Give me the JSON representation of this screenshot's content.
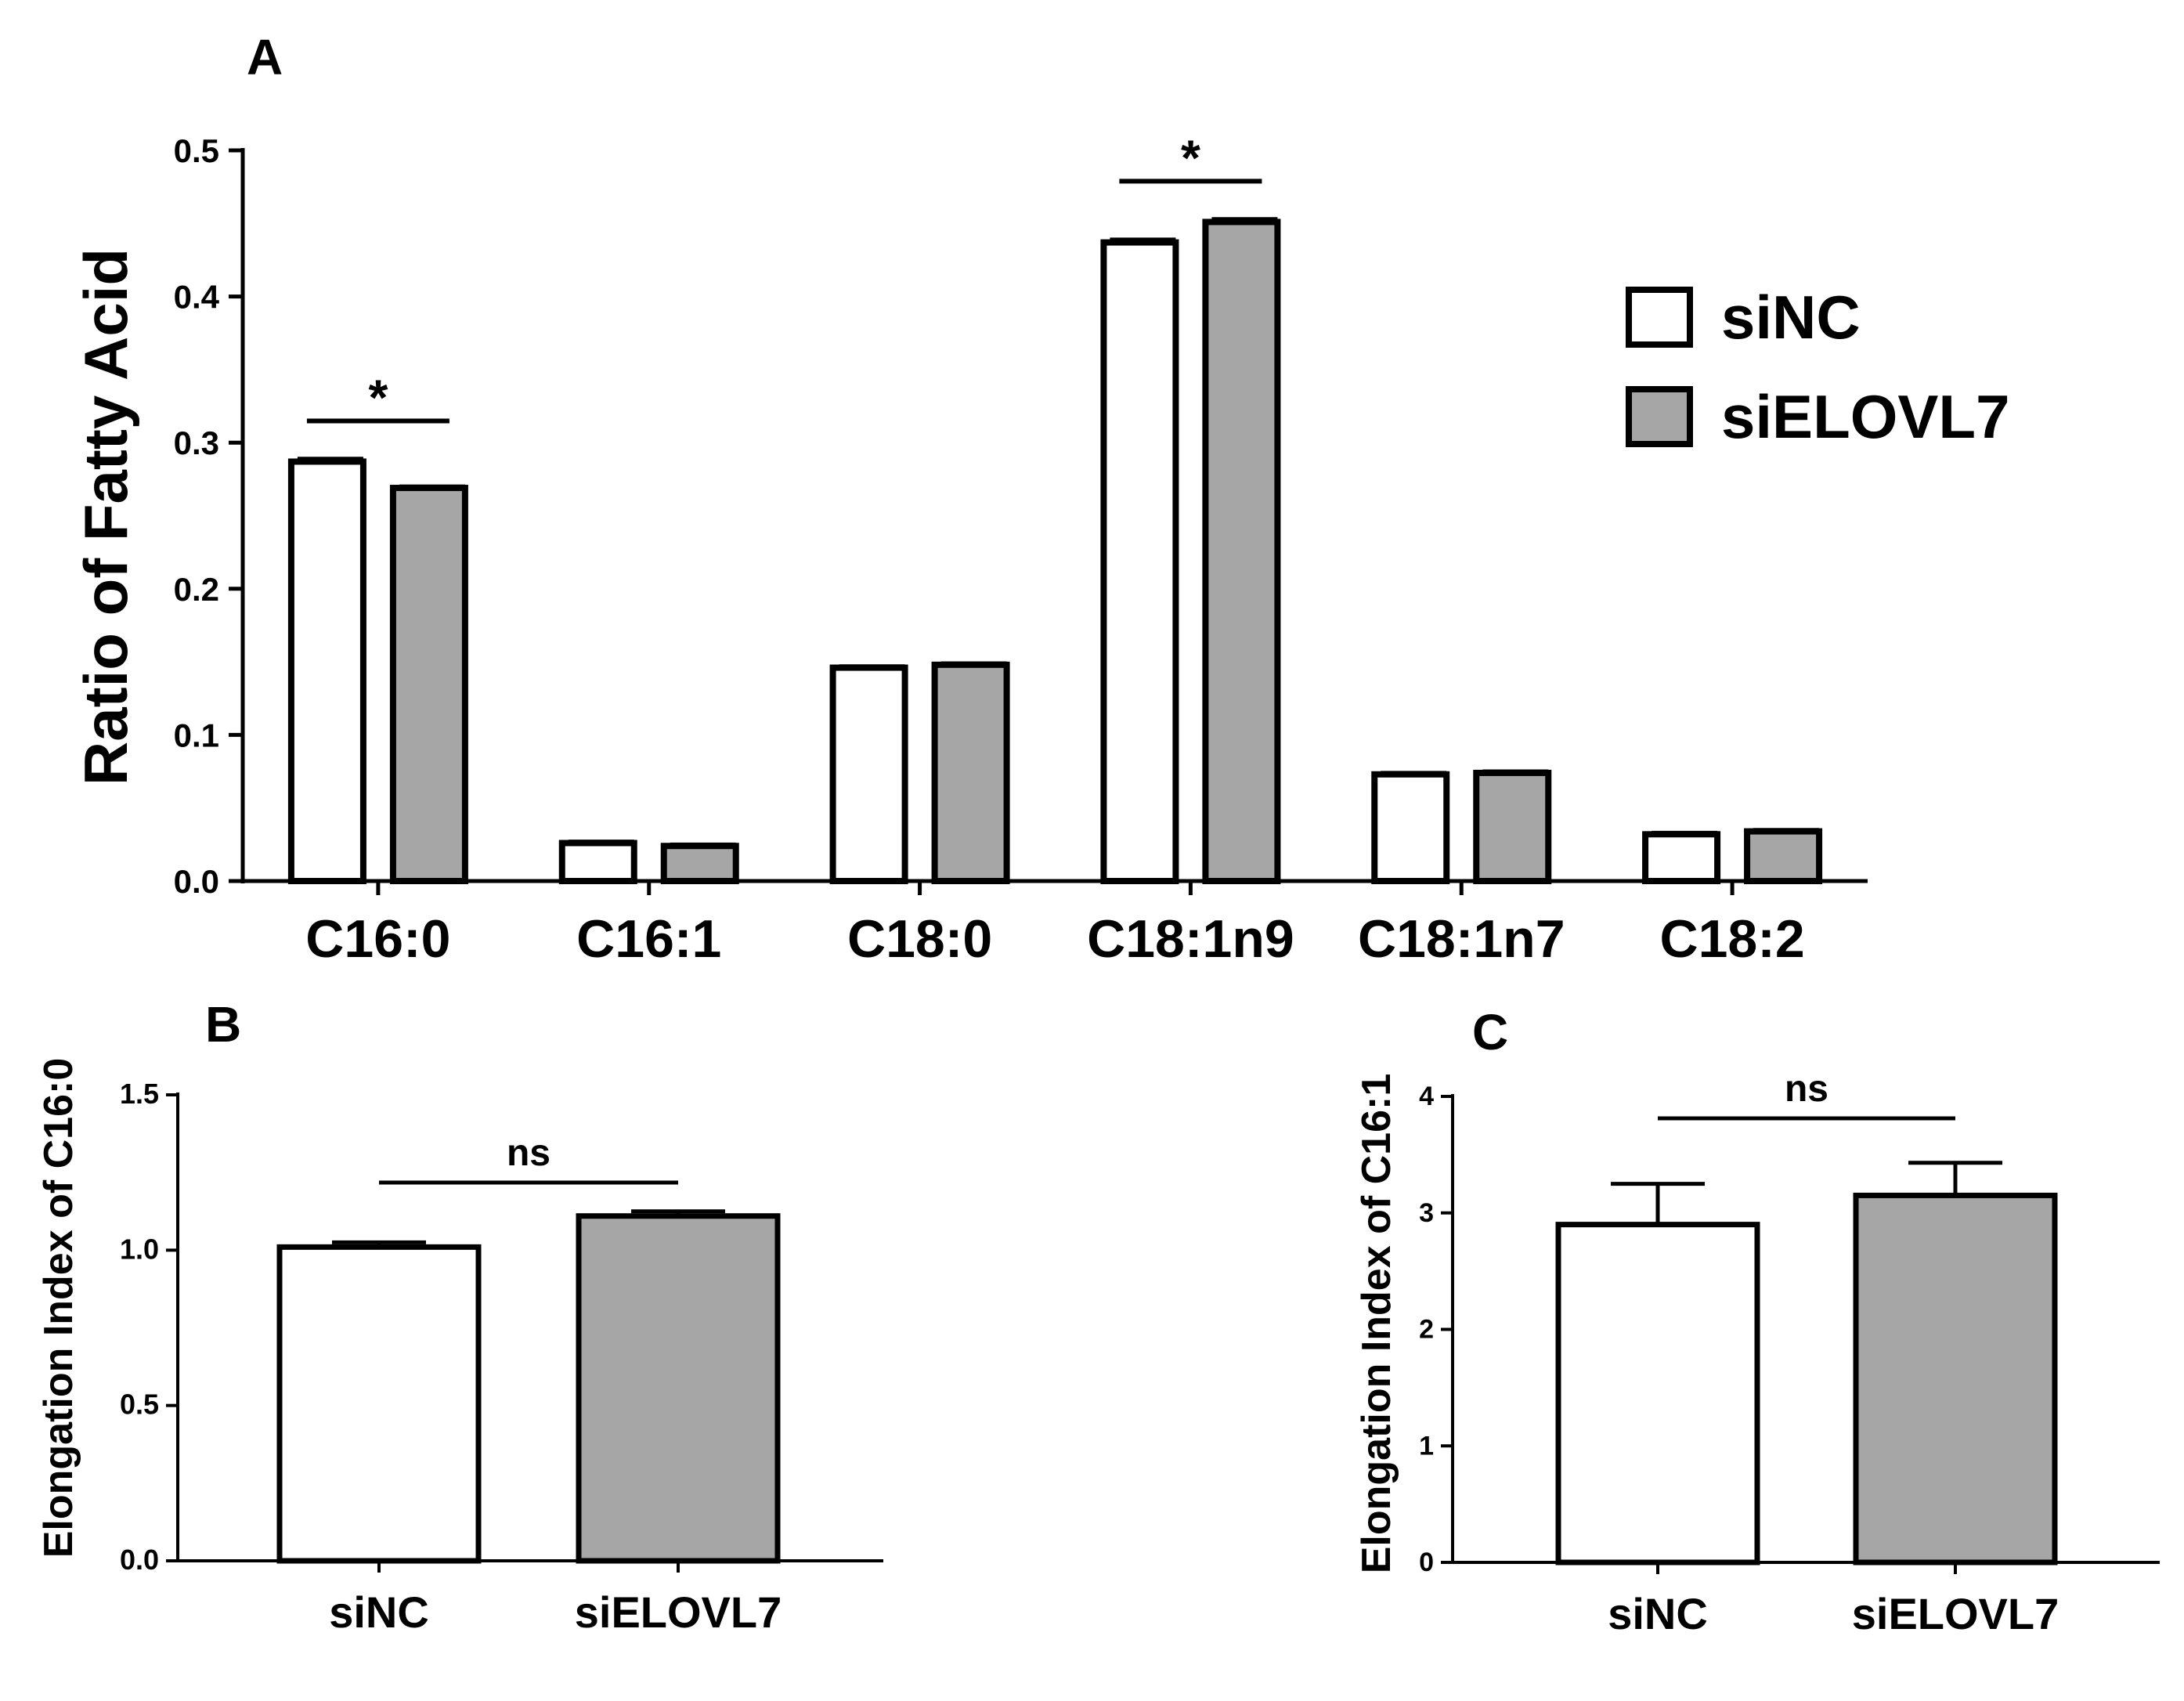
{
  "colors": {
    "siNC": "#ffffff",
    "siELOVL7": "#a6a6a6",
    "stroke": "#000000"
  },
  "chart_data": [
    {
      "type": "bar",
      "panel": "A",
      "title": "",
      "xlabel": "",
      "ylabel": "Ratio of Fatty Acid",
      "ylim": [
        0,
        0.5
      ],
      "yticks": [
        0.0,
        0.1,
        0.2,
        0.3,
        0.4,
        0.5
      ],
      "ytick_labels": [
        "0.0",
        "0.1",
        "0.2",
        "0.3",
        "0.4",
        "0.5"
      ],
      "categories": [
        "C16:0",
        "C16:1",
        "C18:0",
        "C18:1n9",
        "C18:1n7",
        "C18:2"
      ],
      "series": [
        {
          "name": "siNC",
          "values": [
            0.287,
            0.026,
            0.146,
            0.437,
            0.073,
            0.032
          ],
          "errors": [
            0.002,
            0.001,
            0.001,
            0.002,
            0.001,
            0.001
          ]
        },
        {
          "name": "siELOVL7",
          "values": [
            0.269,
            0.024,
            0.148,
            0.451,
            0.074,
            0.034
          ],
          "errors": [
            0.001,
            0.001,
            0.001,
            0.002,
            0.001,
            0.001
          ]
        }
      ],
      "legend": {
        "placement": "top-right",
        "entries": [
          "siNC",
          "siELOVL7"
        ]
      },
      "annotations": [
        {
          "text": "*",
          "category": "C16:0"
        },
        {
          "text": "*",
          "category": "C18:1n9"
        }
      ],
      "grid": false
    },
    {
      "type": "bar",
      "panel": "B",
      "title": "",
      "xlabel": "",
      "ylabel": "Elongation Index of C16:0",
      "ylim": [
        0,
        1.5
      ],
      "yticks": [
        0.0,
        0.5,
        1.0,
        1.5
      ],
      "ytick_labels": [
        "0.0",
        "0.5",
        "1.0",
        "1.5"
      ],
      "categories": [
        "siNC",
        "siELOVL7"
      ],
      "values": [
        1.01,
        1.11
      ],
      "errors": [
        0.015,
        0.015
      ],
      "annotations": [
        {
          "text": "ns"
        }
      ],
      "grid": false
    },
    {
      "type": "bar",
      "panel": "C",
      "title": "",
      "xlabel": "",
      "ylabel": "Elongation Index of C16:1",
      "ylim": [
        0,
        4
      ],
      "yticks": [
        0,
        1,
        2,
        3,
        4
      ],
      "ytick_labels": [
        "0",
        "1",
        "2",
        "3",
        "4"
      ],
      "categories": [
        "siNC",
        "siELOVL7"
      ],
      "values": [
        2.9,
        3.15
      ],
      "errors": [
        0.35,
        0.28
      ],
      "annotations": [
        {
          "text": "ns"
        }
      ],
      "grid": false
    }
  ]
}
